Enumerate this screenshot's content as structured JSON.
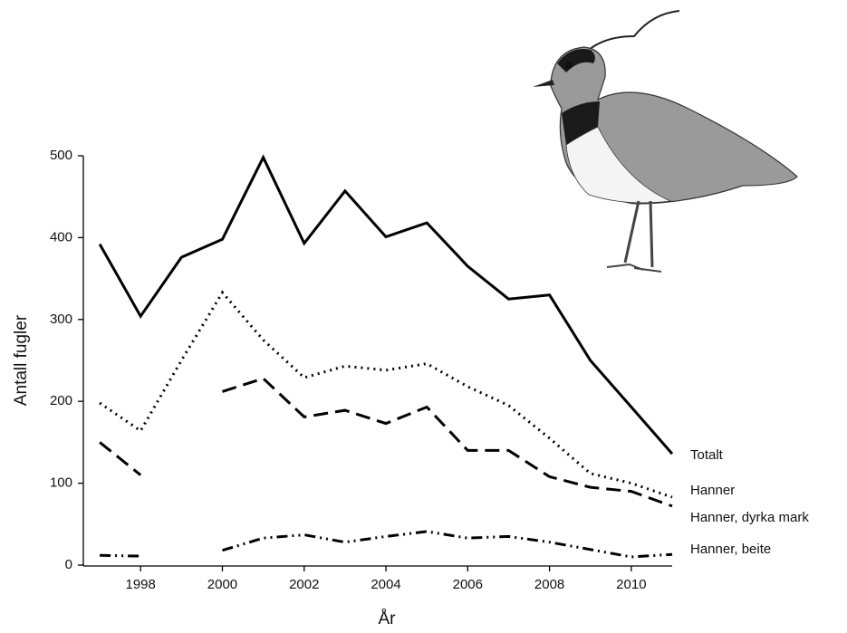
{
  "chart_data": {
    "type": "line",
    "x_label": "År",
    "y_label": "Antall fugler",
    "x": [
      1997,
      1998,
      1999,
      2000,
      2001,
      2002,
      2003,
      2004,
      2005,
      2006,
      2007,
      2008,
      2009,
      2010,
      2011
    ],
    "series": [
      {
        "name": "Totalt",
        "color": "#000000",
        "line_style": "solid",
        "values": [
          392,
          304,
          376,
          398,
          498,
          393,
          457,
          401,
          418,
          365,
          325,
          330,
          250,
          193,
          136
        ]
      },
      {
        "name": "Hanner",
        "color": "#000000",
        "line_style": "dotted",
        "values": [
          198,
          164,
          250,
          333,
          275,
          229,
          243,
          238,
          246,
          218,
          195,
          155,
          112,
          100,
          83
        ]
      },
      {
        "name": "Hanner, dyrka mark",
        "color": "#000000",
        "line_style": "dashed",
        "values": [
          150,
          110,
          null,
          212,
          228,
          181,
          189,
          173,
          193,
          140,
          140,
          108,
          95,
          90,
          72
        ]
      },
      {
        "name": "Hanner, beite",
        "color": "#000000",
        "line_style": "dashdot",
        "values": [
          12,
          11,
          null,
          18,
          33,
          37,
          28,
          35,
          41,
          33,
          35,
          28,
          19,
          10,
          13
        ]
      }
    ],
    "xlim": [
      1996.6,
      2011
    ],
    "xticks": [
      1998,
      2000,
      2002,
      2004,
      2006,
      2008,
      2010
    ],
    "ylim": [
      0,
      500
    ],
    "yticks": [
      0,
      100,
      200,
      300,
      400,
      500
    ],
    "grid": false
  }
}
